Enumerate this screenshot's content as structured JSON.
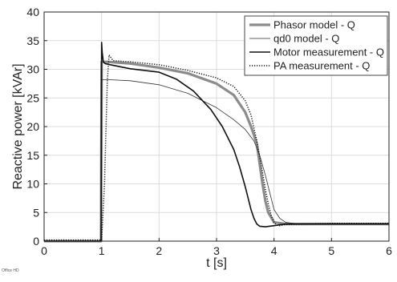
{
  "chart_data": {
    "type": "line",
    "title": "",
    "xlabel": "t [s]",
    "ylabel": "Reactive power [kVAr]",
    "xlim": [
      0,
      6
    ],
    "ylim": [
      0,
      40
    ],
    "xticks": [
      0,
      1,
      2,
      3,
      4,
      5,
      6
    ],
    "yticks": [
      0,
      5,
      10,
      15,
      20,
      25,
      30,
      35,
      40
    ],
    "grid": true,
    "legend_position": "top-right",
    "series": [
      {
        "name": "Phasor model - Q",
        "color": "#8c8c8c",
        "style": "thick",
        "x": [
          0,
          0.99,
          1.0,
          1.01,
          1.1,
          1.5,
          2.0,
          2.5,
          3.0,
          3.3,
          3.5,
          3.6,
          3.7,
          3.75,
          3.8,
          3.85,
          3.9,
          4.0,
          4.2,
          5.0,
          6.0
        ],
        "y": [
          0.0,
          0.0,
          31.3,
          31.3,
          31.3,
          31.0,
          30.3,
          29.3,
          27.5,
          25.5,
          22.5,
          20.0,
          17.0,
          13.5,
          10.0,
          7.0,
          5.0,
          3.3,
          3.0,
          3.0,
          3.0
        ]
      },
      {
        "name": "qd0 model - Q",
        "color": "#333333",
        "style": "thin",
        "x": [
          0,
          0.99,
          1.0,
          1.01,
          1.1,
          1.5,
          2.0,
          2.5,
          3.0,
          3.3,
          3.5,
          3.65,
          3.75,
          3.85,
          3.95,
          4.0,
          4.1,
          4.2,
          4.4,
          5.0,
          6.0
        ],
        "y": [
          0.0,
          0.0,
          28.2,
          28.2,
          28.2,
          28.0,
          27.3,
          25.8,
          23.3,
          21.2,
          19.5,
          17.5,
          15.0,
          11.5,
          7.5,
          5.5,
          4.0,
          3.3,
          3.0,
          3.0,
          3.0
        ]
      },
      {
        "name": "Motor measurement - Q",
        "color": "#111111",
        "style": "medium",
        "x": [
          0,
          0.99,
          1.0,
          1.01,
          1.03,
          1.06,
          1.15,
          1.5,
          2.0,
          2.3,
          2.6,
          2.9,
          3.1,
          3.3,
          3.4,
          3.5,
          3.55,
          3.6,
          3.65,
          3.7,
          3.75,
          3.85,
          4.0,
          4.2,
          5.0,
          6.0
        ],
        "y": [
          0.0,
          0.0,
          34.7,
          33.0,
          31.3,
          31.0,
          30.8,
          30.1,
          29.5,
          28.3,
          26.2,
          23.0,
          20.0,
          16.0,
          13.0,
          9.5,
          7.5,
          5.5,
          4.0,
          3.0,
          2.6,
          2.5,
          2.7,
          3.0,
          3.0,
          3.0
        ]
      },
      {
        "name": "PA measurement - Q",
        "color": "#111111",
        "style": "dotted",
        "x": [
          0,
          0.99,
          1.0,
          1.05,
          1.1,
          1.13,
          1.2,
          1.5,
          2.0,
          2.5,
          3.0,
          3.3,
          3.5,
          3.6,
          3.7,
          3.8,
          3.85,
          3.9,
          3.95,
          4.0,
          4.05,
          4.1,
          4.2,
          5.0,
          6.0
        ],
        "y": [
          0.2,
          0.2,
          0.2,
          10.0,
          28.0,
          32.5,
          31.5,
          31.3,
          30.8,
          29.8,
          28.5,
          27.0,
          24.5,
          22.0,
          17.5,
          12.0,
          9.0,
          6.5,
          4.5,
          3.3,
          2.8,
          2.7,
          2.9,
          3.1,
          3.1
        ]
      }
    ]
  },
  "watermark_text": "Office HD"
}
